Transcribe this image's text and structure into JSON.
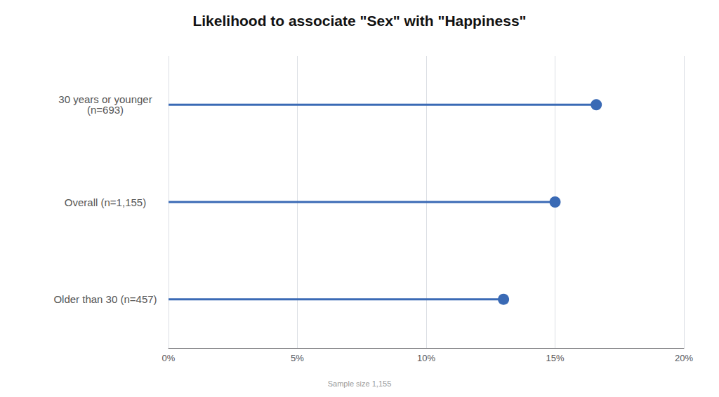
{
  "chart_data": {
    "type": "lollipop",
    "orientation": "horizontal",
    "title": "Likelihood to associate \"Sex\" with \"Happiness\"",
    "categories": [
      "30 years or younger\n(n=693)",
      "Overall (n=1,155)",
      "Older than 30 (n=457)"
    ],
    "values": [
      16.6,
      15.0,
      13.0
    ],
    "color": "#3a6ab5",
    "xlim": [
      0,
      20
    ],
    "xticks": [
      {
        "value": 0,
        "label": "0%"
      },
      {
        "value": 5,
        "label": "5%"
      },
      {
        "value": 10,
        "label": "10%"
      },
      {
        "value": 15,
        "label": "15%"
      },
      {
        "value": 20,
        "label": "20%"
      }
    ],
    "grid": true,
    "annotations": [
      "Sample size 1,155"
    ]
  }
}
